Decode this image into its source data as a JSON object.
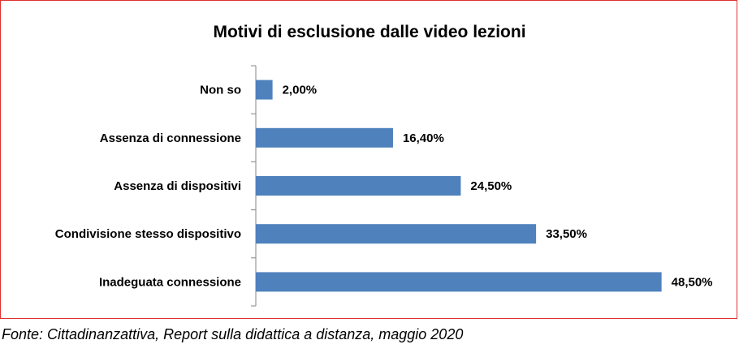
{
  "chart_data": {
    "type": "bar",
    "orientation": "horizontal",
    "title": "Motivi di esclusione dalle video lezioni",
    "categories": [
      "Non so",
      "Assenza di connessione",
      "Assenza di dispositivi",
      "Condivisione stesso dispositivo",
      "Inadeguata connessione"
    ],
    "values": [
      2.0,
      16.4,
      24.5,
      33.5,
      48.5
    ],
    "value_labels": [
      "2,00%",
      "16,40%",
      "24,50%",
      "33,50%",
      "48,50%"
    ],
    "xlim": [
      0,
      53
    ],
    "grid": false,
    "legend": "none",
    "bar_color": "#4f81bd",
    "frame_color": "#e0312f"
  },
  "source_note": "Fonte: Cittadinanzattiva, Report sulla didattica a distanza, maggio 2020"
}
